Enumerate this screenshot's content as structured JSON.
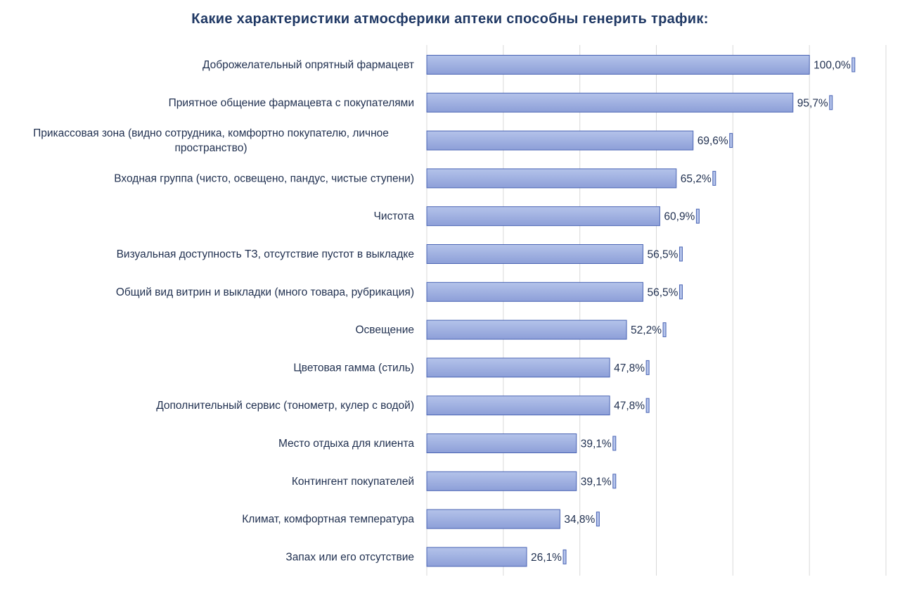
{
  "chart_data": {
    "type": "bar",
    "orientation": "horizontal",
    "title": "Какие характеристики атмосферики аптеки способны генерить трафик:",
    "categories": [
      "Доброжелательный опрятный фармацевт",
      "Приятное общение фармацевта с покупателями",
      "Прикассовая зона (видно сотрудника, комфортно покупателю, личное пространство)",
      "Входная группа (чисто, освещено, пандус, чистые ступени)",
      "Чистота",
      "Визуальная доступность ТЗ, отсутствие пустот в выкладке",
      "Общий вид витрин и выкладки (много товара, рубрикация)",
      "Освещение",
      "Цветовая гамма (стиль)",
      "Дополнительный сервис (тонометр, кулер с водой)",
      "Место отдыха для клиента",
      "Контингент покупателей",
      "Климат, комфортная температура",
      "Запах или его отсутствие"
    ],
    "category_lines": [
      [
        "Доброжелательный опрятный фармацевт"
      ],
      [
        "Приятное общение фармацевта с покупателями"
      ],
      [
        "Прикассовая зона (видно сотрудника, комфортно покупателю, личное",
        "пространство)"
      ],
      [
        "Входная группа (чисто, освещено, пандус, чистые ступени)"
      ],
      [
        "Чистота"
      ],
      [
        "Визуальная доступность ТЗ, отсутствие пустот в выкладке"
      ],
      [
        "Общий вид витрин и выкладки (много товара, рубрикация)"
      ],
      [
        "Освещение"
      ],
      [
        "Цветовая гамма (стиль)"
      ],
      [
        "Дополнительный сервис (тонометр, кулер с водой)"
      ],
      [
        "Место отдыха для клиента"
      ],
      [
        "Контингент покупателей"
      ],
      [
        "Климат, комфортная температура"
      ],
      [
        "Запах или его отсутствие"
      ]
    ],
    "values": [
      100.0,
      95.7,
      69.6,
      65.2,
      60.9,
      56.5,
      56.5,
      52.2,
      47.8,
      47.8,
      39.1,
      39.1,
      34.8,
      26.1
    ],
    "value_labels": [
      "100,0%",
      "95,7%",
      "69,6%",
      "65,2%",
      "60,9%",
      "56,5%",
      "56,5%",
      "52,2%",
      "47,8%",
      "47,8%",
      "39,1%",
      "39,1%",
      "34,8%",
      "26,1%"
    ],
    "xlim": [
      0,
      120
    ],
    "x_gridlines": [
      0,
      20,
      40,
      60,
      80,
      100,
      120
    ],
    "grid": true,
    "legend": "none",
    "colors": {
      "bar_fill_top": "#b4c3ea",
      "bar_fill_bottom": "#8d9fd8",
      "bar_stroke": "#4a64b4",
      "grid": "#d9d9d9",
      "title": "#1f3864",
      "text": "#1f2f4f"
    }
  }
}
